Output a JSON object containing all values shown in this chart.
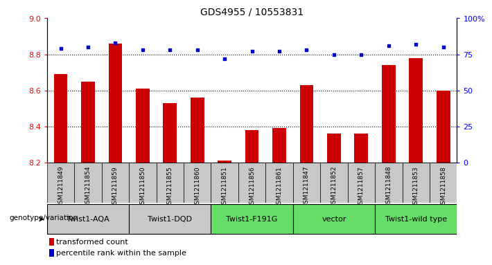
{
  "title": "GDS4955 / 10553831",
  "samples": [
    "GSM1211849",
    "GSM1211854",
    "GSM1211859",
    "GSM1211850",
    "GSM1211855",
    "GSM1211860",
    "GSM1211851",
    "GSM1211856",
    "GSM1211861",
    "GSM1211847",
    "GSM1211852",
    "GSM1211857",
    "GSM1211848",
    "GSM1211853",
    "GSM1211858"
  ],
  "bar_values": [
    8.69,
    8.65,
    8.86,
    8.61,
    8.53,
    8.56,
    8.21,
    8.38,
    8.39,
    8.63,
    8.36,
    8.36,
    8.74,
    8.78,
    8.6
  ],
  "percentile_values": [
    79,
    80,
    83,
    78,
    78,
    78,
    72,
    77,
    77,
    78,
    75,
    75,
    81,
    82,
    80
  ],
  "ylim_left": [
    8.2,
    9.0
  ],
  "ylim_right": [
    0,
    100
  ],
  "yticks_left": [
    8.2,
    8.4,
    8.6,
    8.8,
    9.0
  ],
  "yticks_right": [
    0,
    25,
    50,
    75,
    100
  ],
  "ytick_labels_right": [
    "0",
    "25",
    "50",
    "75",
    "100%"
  ],
  "grid_values": [
    8.4,
    8.6,
    8.8
  ],
  "groups": [
    {
      "label": "Twist1-AQA",
      "start": 0,
      "end": 3,
      "color": "#c8c8c8"
    },
    {
      "label": "Twist1-DQD",
      "start": 3,
      "end": 6,
      "color": "#c8c8c8"
    },
    {
      "label": "Twist1-F191G",
      "start": 6,
      "end": 9,
      "color": "#66dd66"
    },
    {
      "label": "vector",
      "start": 9,
      "end": 12,
      "color": "#66dd66"
    },
    {
      "label": "Twist1-wild type",
      "start": 12,
      "end": 15,
      "color": "#66dd66"
    }
  ],
  "sample_bg_color": "#c8c8c8",
  "bar_color": "#cc0000",
  "percentile_color": "#0000cc",
  "bar_width": 0.5,
  "legend_label_bar": "transformed count",
  "legend_label_percentile": "percentile rank within the sample",
  "genotype_label": "genotype/variation",
  "background_color": "#ffffff"
}
